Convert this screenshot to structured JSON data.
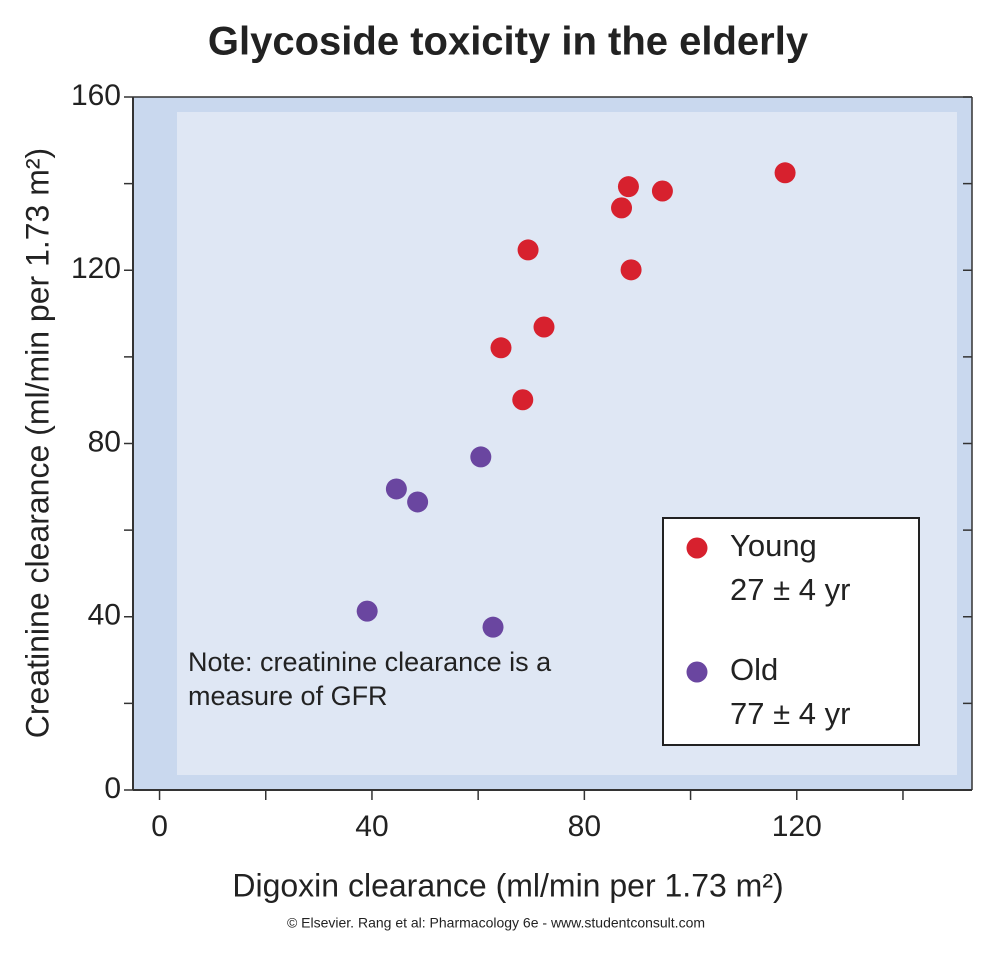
{
  "chart_data": {
    "type": "scatter",
    "title": "Glycoside toxicity in the elderly",
    "x_label": "Digoxin clearance (ml/min per 1.73 m²)",
    "y_label": "Creatinine clearance (ml/min per 1.73 m²)",
    "xlim": [
      -5,
      153
    ],
    "ylim": [
      0,
      160
    ],
    "xticks": [
      0,
      40,
      80,
      120
    ],
    "xminorticks": [
      20,
      60,
      100,
      140
    ],
    "yticks": [
      0,
      40,
      80,
      120,
      160
    ],
    "yminorticks": [
      20,
      60,
      100,
      140
    ],
    "legend": "lower right",
    "series": [
      {
        "name": "Young",
        "detail": "27 ± 4 yr",
        "color": "#d7212e",
        "x": [
          117.8,
          88.3,
          87,
          94.7,
          69.4,
          88.8,
          72.4,
          64.3,
          68.4
        ],
        "values": [
          142.5,
          139.3,
          134.4,
          138.3,
          124.7,
          120.1,
          106.9,
          102.1,
          90.1
        ]
      },
      {
        "name": "Old",
        "detail": "77 ± 4 yr",
        "color": "#6a46a0",
        "x": [
          60.5,
          44.6,
          48.6,
          39.1,
          62.8
        ],
        "values": [
          76.9,
          69.5,
          66.5,
          41.3,
          37.6
        ]
      }
    ],
    "note": [
      "Note: creatinine clearance is a",
      "measure of GFR"
    ],
    "credit": "© Elsevier. Rang et al: Pharmacology 6e - www.studentconsult.com"
  }
}
